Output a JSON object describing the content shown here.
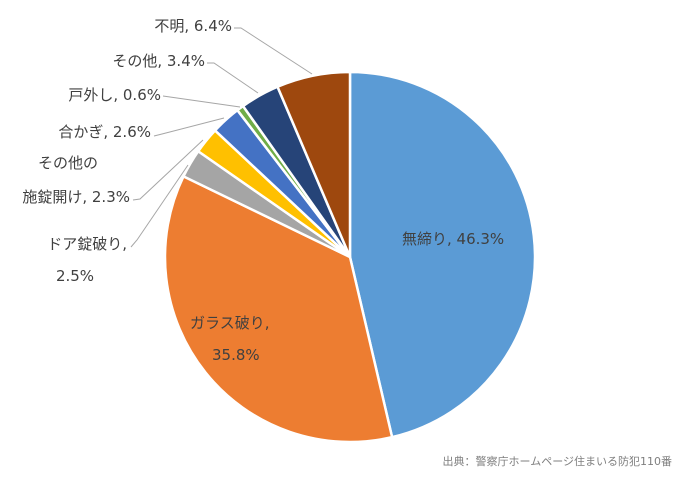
{
  "chart_data": {
    "type": "pie",
    "start": "12 o'clock, clockwise",
    "slices": [
      {
        "label": "無締り",
        "value": 46.3,
        "text": "無締り, 46.3%",
        "color": "#5B9BD5"
      },
      {
        "label": "ガラス破り",
        "value": 35.8,
        "text_lines": [
          "ガラス破り,",
          "35.8%"
        ],
        "color": "#ED7D31"
      },
      {
        "label": "ドア錠破り",
        "value": 2.5,
        "text_lines": [
          "ドア錠破り,",
          "2.5%"
        ],
        "color": "#A5A5A5"
      },
      {
        "label": "その他の施錠開け",
        "value": 2.3,
        "text_lines": [
          "その他の",
          "施錠開け, 2.3%"
        ],
        "color": "#FFC000"
      },
      {
        "label": "合かぎ",
        "value": 2.6,
        "text": "合かぎ, 2.6%",
        "color": "#4472C4"
      },
      {
        "label": "戸外し",
        "value": 0.6,
        "text": "戸外し, 0.6%",
        "color": "#70AD47"
      },
      {
        "label": "その他",
        "value": 3.4,
        "text": "その他, 3.4%",
        "color": "#264478"
      },
      {
        "label": "不明",
        "value": 6.4,
        "text": "不明, 6.4%",
        "color": "#9E480E"
      }
    ],
    "legend": "none",
    "source_note": "出典：警察庁ホームページ住まいる防犯110番"
  }
}
